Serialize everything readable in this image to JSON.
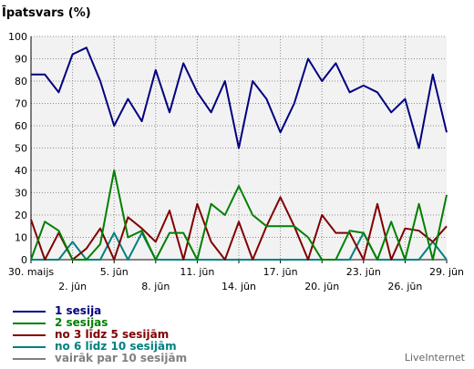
{
  "watermark": "LiveInternet",
  "chart_data": {
    "type": "line",
    "title": "Īpatsvars (%)",
    "xlabel": "",
    "ylabel": "",
    "ylim": [
      0,
      100
    ],
    "yticks": [
      0,
      10,
      20,
      30,
      40,
      50,
      60,
      70,
      80,
      90,
      100
    ],
    "grid": true,
    "legend_position": "bottom-left",
    "x": [
      "30. maijs",
      "31. maijs",
      "1. jūn",
      "2. jūn",
      "3. jūn",
      "4. jūn",
      "5. jūn",
      "6. jūn",
      "7. jūn",
      "8. jūn",
      "9. jūn",
      "10. jūn",
      "11. jūn",
      "12. jūn",
      "13. jūn",
      "14. jūn",
      "15. jūn",
      "16. jūn",
      "17. jūn",
      "18. jūn",
      "19. jūn",
      "20. jūn",
      "21. jūn",
      "22. jūn",
      "23. jūn",
      "24. jūn",
      "25. jūn",
      "26. jūn",
      "27. jūn",
      "28. jūn",
      "29. jūn"
    ],
    "xtick_labels": [
      {
        "index": 0,
        "label": "30. maijs",
        "row": 1
      },
      {
        "index": 3,
        "label": "2. jūn",
        "row": 2
      },
      {
        "index": 6,
        "label": "5. jūn",
        "row": 1
      },
      {
        "index": 9,
        "label": "8. jūn",
        "row": 2
      },
      {
        "index": 12,
        "label": "11. jūn",
        "row": 1
      },
      {
        "index": 15,
        "label": "14. jūn",
        "row": 2
      },
      {
        "index": 18,
        "label": "17. jūn",
        "row": 1
      },
      {
        "index": 21,
        "label": "20. jūn",
        "row": 2
      },
      {
        "index": 24,
        "label": "23. jūn",
        "row": 1
      },
      {
        "index": 27,
        "label": "26. jūn",
        "row": 2
      },
      {
        "index": 30,
        "label": "29. jūn",
        "row": 1
      }
    ],
    "series": [
      {
        "name": "1 sesija",
        "color": "#000080",
        "values": [
          83,
          83,
          75,
          92,
          95,
          80,
          60,
          72,
          62,
          85,
          66,
          88,
          75,
          66,
          80,
          50,
          80,
          72,
          57,
          70,
          90,
          80,
          88,
          75,
          78,
          75,
          66,
          72,
          50,
          83,
          57
        ]
      },
      {
        "name": "2 sesijas",
        "color": "#008000",
        "values": [
          0,
          17,
          13,
          0,
          0,
          7,
          40,
          10,
          13,
          0,
          12,
          12,
          0,
          25,
          20,
          33,
          20,
          15,
          15,
          15,
          10,
          0,
          0,
          13,
          12,
          0,
          17,
          0,
          25,
          0,
          29
        ]
      },
      {
        "name": "no 3 līdz 5 sesijām",
        "color": "#800000",
        "values": [
          18,
          0,
          12,
          0,
          5,
          14,
          0,
          19,
          14,
          8,
          22,
          0,
          25,
          8,
          0,
          17,
          0,
          15,
          28,
          15,
          0,
          20,
          12,
          12,
          0,
          25,
          0,
          14,
          13,
          8,
          15
        ]
      },
      {
        "name": "no 6 līdz 10 sesijām",
        "color": "#008080",
        "values": [
          0,
          0,
          0,
          8,
          0,
          0,
          12,
          0,
          12,
          0,
          0,
          0,
          0,
          0,
          0,
          0,
          0,
          0,
          0,
          0,
          0,
          0,
          0,
          0,
          12,
          0,
          0,
          0,
          0,
          8,
          0
        ]
      },
      {
        "name": "vairāk par 10 sesijām",
        "color": "#808080",
        "values": [
          0,
          0,
          0,
          0,
          0,
          0,
          0,
          0,
          0,
          0,
          0,
          0,
          0,
          0,
          0,
          0,
          0,
          0,
          0,
          0,
          0,
          0,
          0,
          0,
          0,
          0,
          0,
          0,
          0,
          0,
          0
        ]
      }
    ]
  }
}
